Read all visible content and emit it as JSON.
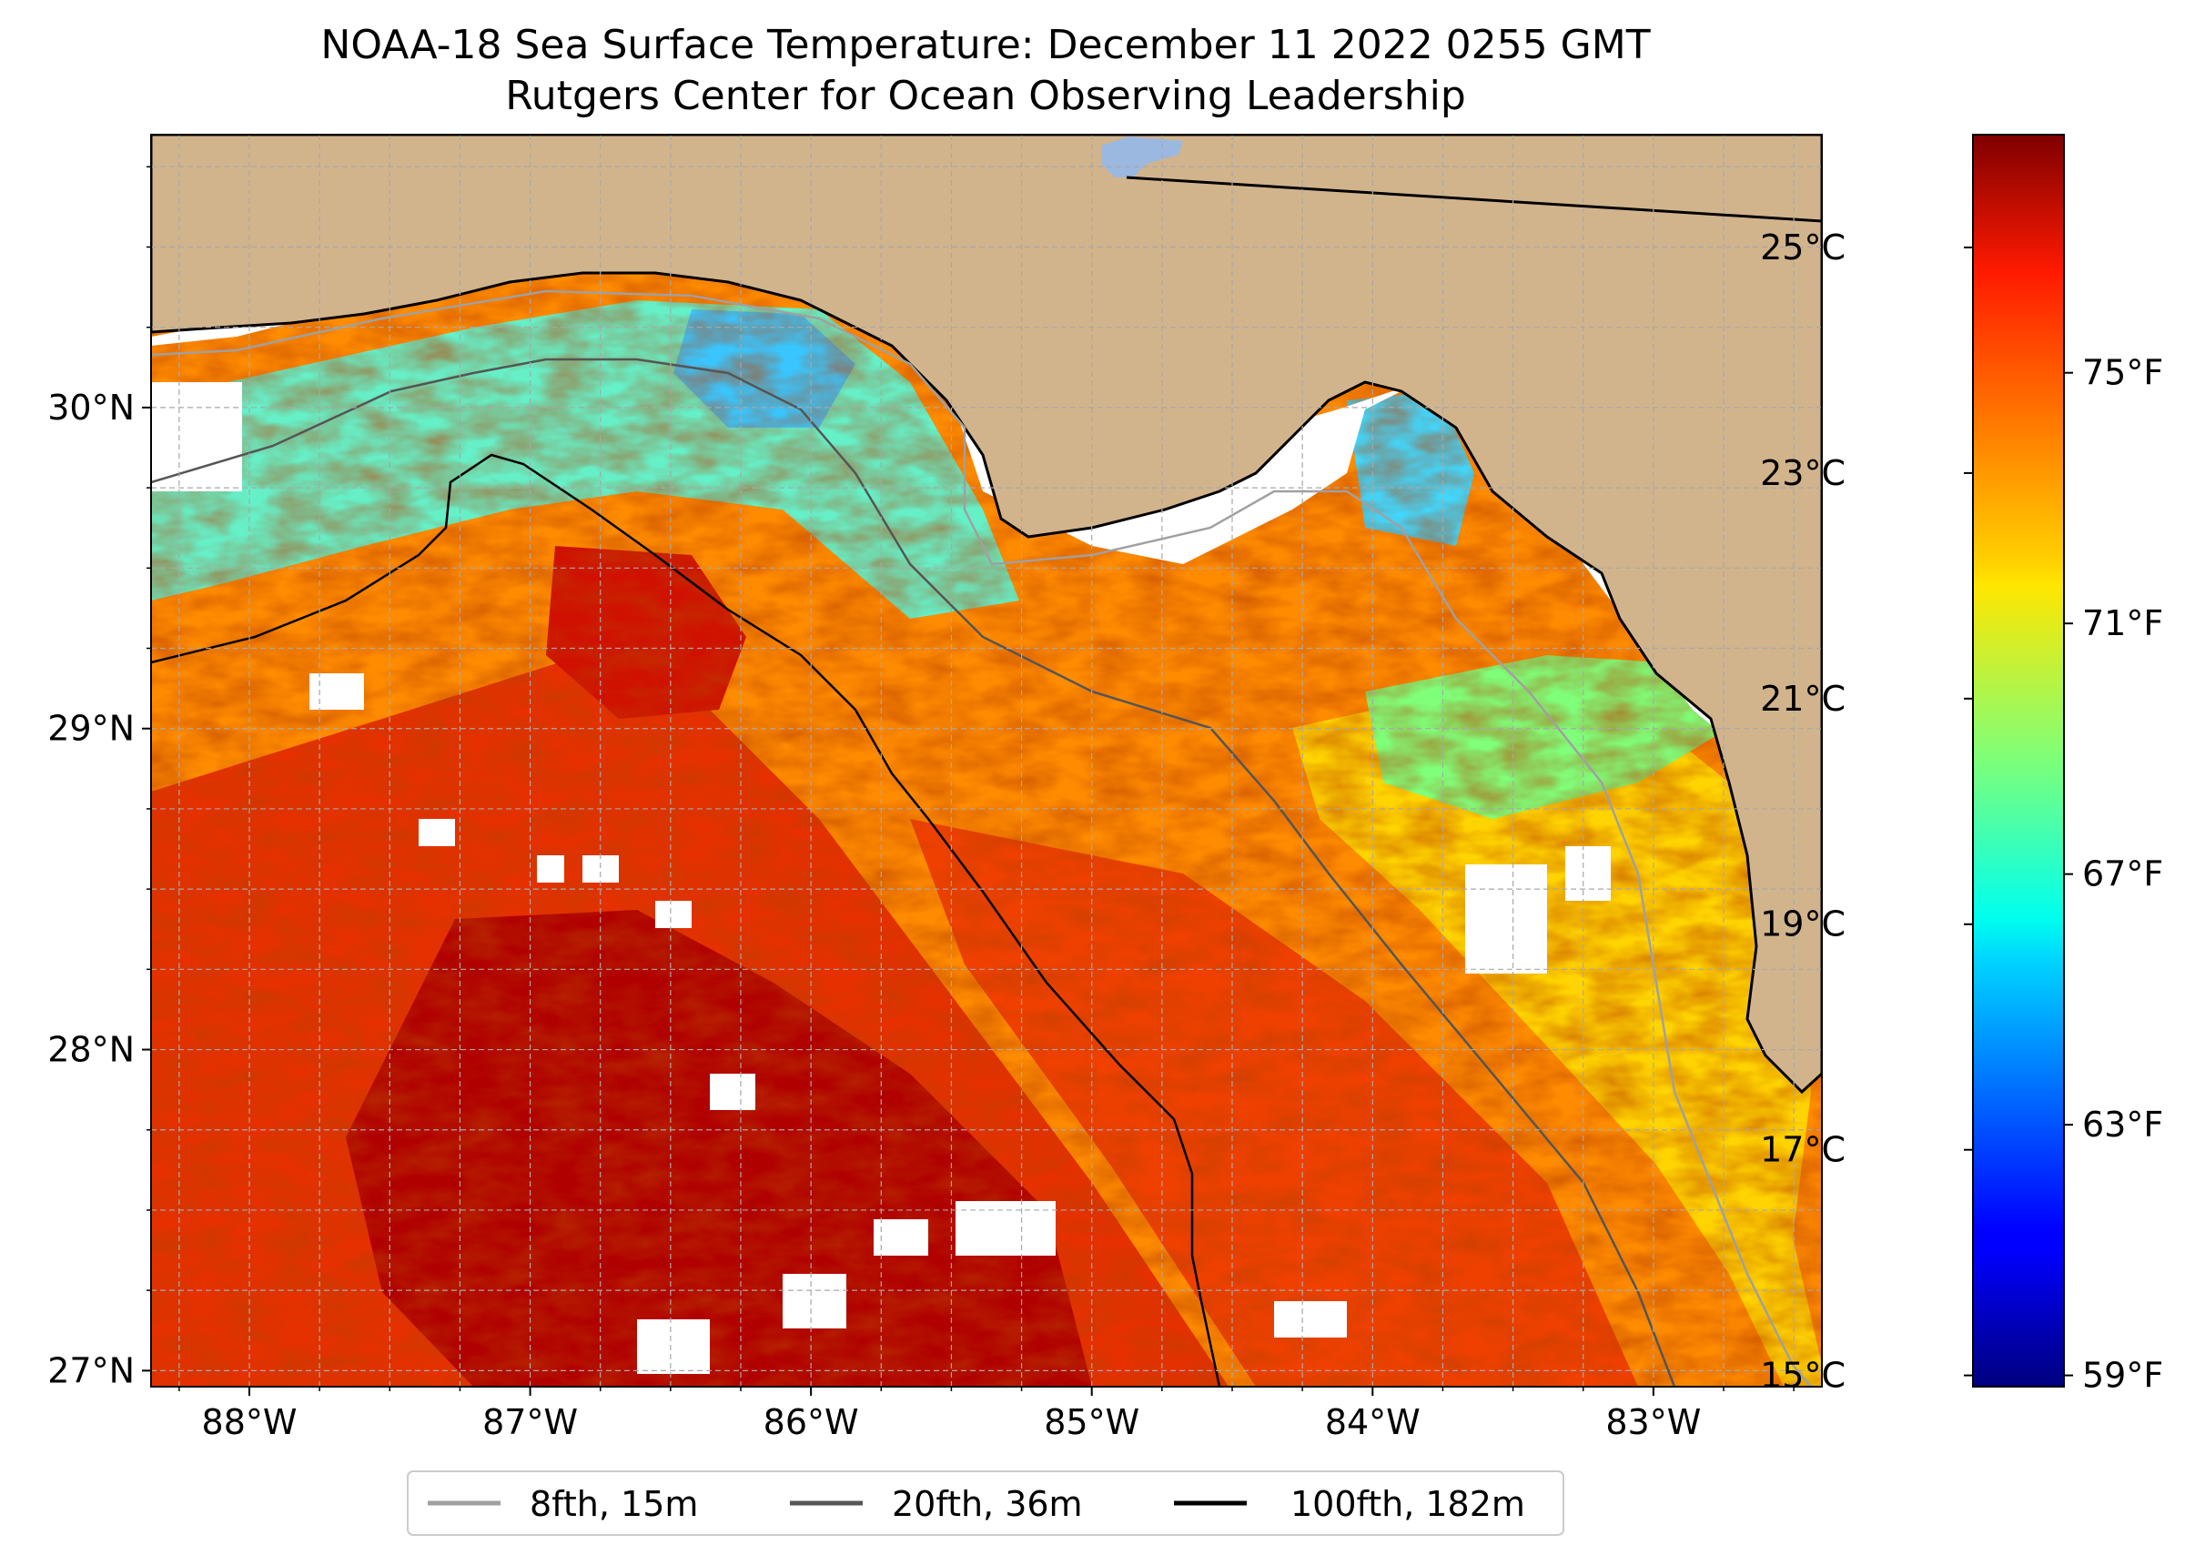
{
  "title": {
    "line1": "NOAA-18 Sea Surface Temperature: December 11 2022 0255 GMT",
    "line2": "Rutgers Center for Ocean Observing Leadership"
  },
  "map": {
    "lon_range": [
      -88.35,
      -82.4
    ],
    "lat_range": [
      26.95,
      30.85
    ],
    "lon_ticks": [
      {
        "value": -88,
        "label": "88°W"
      },
      {
        "value": -87,
        "label": "87°W"
      },
      {
        "value": -86,
        "label": "86°W"
      },
      {
        "value": -85,
        "label": "85°W"
      },
      {
        "value": -84,
        "label": "84°W"
      },
      {
        "value": -83,
        "label": "83°W"
      }
    ],
    "lat_ticks": [
      {
        "value": 30,
        "label": "30°N"
      },
      {
        "value": 29,
        "label": "29°N"
      },
      {
        "value": 28,
        "label": "28°N"
      },
      {
        "value": 27,
        "label": "27°N"
      }
    ],
    "colors": {
      "land": "#d2b48c",
      "no_data": "#ffffff",
      "coast": "#000000",
      "grid": "#b0b0b0",
      "lake": "#9bb8e0"
    }
  },
  "colorbar": {
    "celsius": [
      {
        "value": 25,
        "label": "25°C"
      },
      {
        "value": 23,
        "label": "23°C"
      },
      {
        "value": 21,
        "label": "21°C"
      },
      {
        "value": 19,
        "label": "19°C"
      },
      {
        "value": 17,
        "label": "17°C"
      },
      {
        "value": 15,
        "label": "15°C"
      }
    ],
    "fahrenheit": [
      {
        "value": 75,
        "label": "75°F"
      },
      {
        "value": 71,
        "label": "71°F"
      },
      {
        "value": 67,
        "label": "67°F"
      },
      {
        "value": 63,
        "label": "63°F"
      },
      {
        "value": 59,
        "label": "59°F"
      }
    ],
    "range_c": [
      14.9,
      26.0
    ],
    "colormap": "jet"
  },
  "legend": {
    "items": [
      {
        "label": "8fth, 15m",
        "color": "#a0a0a0"
      },
      {
        "label": "20fth, 36m",
        "color": "#555555"
      },
      {
        "label": "100fth, 182m",
        "color": "#000000"
      }
    ]
  }
}
